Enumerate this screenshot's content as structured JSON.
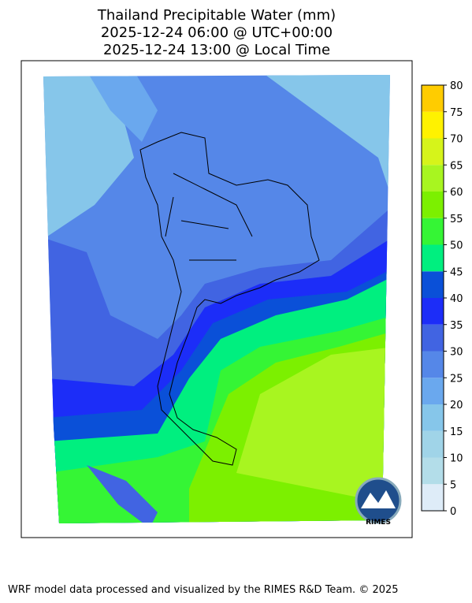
{
  "header": {
    "title": [
      "Thailand Precipitable Water (mm)",
      "2025-12-24 06:00 @ UTC+00:00",
      "2025-12-24 13:00 @ Local Time"
    ]
  },
  "colorbar": {
    "levels": [
      0,
      5,
      10,
      15,
      20,
      25,
      30,
      35,
      40,
      45,
      50,
      55,
      60,
      65,
      70,
      75,
      80
    ],
    "colors": [
      "#deecf8",
      "#b3dde9",
      "#a0d4e8",
      "#86c6ea",
      "#6aa8ee",
      "#5587e8",
      "#4164e2",
      "#1c2df8",
      "#0a50d8",
      "#00ef7f",
      "#35f535",
      "#7cf000",
      "#a8f520",
      "#d6f41a",
      "#fff200",
      "#ffcc00"
    ]
  },
  "logo": "RIMES",
  "footer": "WRF model data processed and visualized by the RIMES R&D Team. © 2025"
}
